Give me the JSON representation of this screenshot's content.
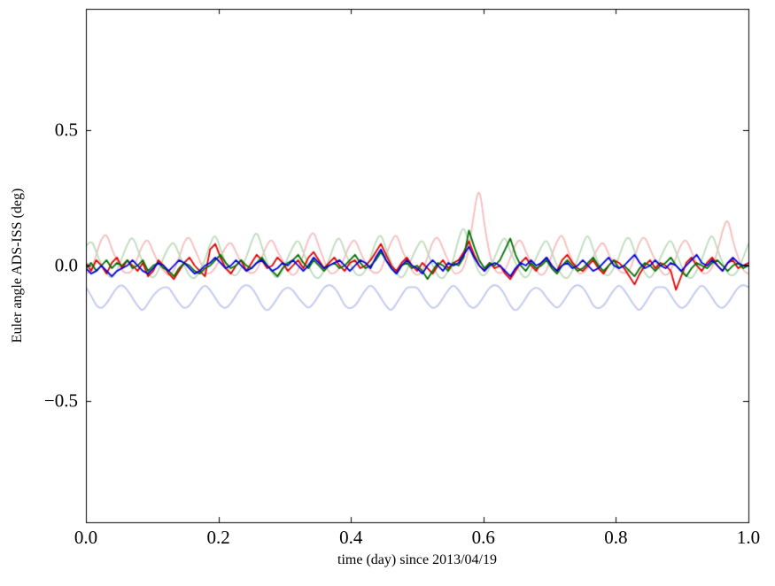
{
  "figure": {
    "background_color": "#ffffff",
    "axis_color": "#000000"
  },
  "chart_data": {
    "type": "line",
    "title": "",
    "xlabel": "time (day) since 2013/04/19",
    "ylabel": "Euler angle ADS-ISS (deg)",
    "xlim": [
      0,
      1
    ],
    "ylim": [
      -0.95,
      0.95
    ],
    "grid": false,
    "legend": "none",
    "xticks": {
      "values": [
        0.0,
        0.2,
        0.4,
        0.6,
        0.8,
        1.0
      ],
      "labels": [
        "0.0",
        "0.2",
        "0.4",
        "0.6",
        "0.8",
        "1.0"
      ]
    },
    "yticks": {
      "values": [
        -0.5,
        0.0,
        0.5
      ],
      "labels": [
        "−0.5",
        "0.0",
        "0.5"
      ]
    },
    "series": [
      {
        "name": "pale-red-oscillation",
        "color": "#f7bcbc",
        "width": 1.8,
        "smooth": true,
        "values": [
          -0.03,
          -0.02,
          0.04,
          0.1,
          0.12,
          0.06,
          0.02,
          -0.02,
          -0.03,
          -0.02,
          0.03,
          0.08,
          0.1,
          0.05,
          0.01,
          -0.02,
          -0.04,
          -0.02,
          0.03,
          0.09,
          0.11,
          0.06,
          0.02,
          -0.03,
          -0.03,
          -0.01,
          0.03,
          0.07,
          0.09,
          0.05,
          0.01,
          -0.02,
          -0.03,
          -0.02,
          0.03,
          0.08,
          0.1,
          0.05,
          0.02,
          -0.02,
          -0.04,
          -0.02,
          0.04,
          0.1,
          0.13,
          0.07,
          0.02,
          -0.03,
          -0.03,
          -0.01,
          0.03,
          0.08,
          0.1,
          0.05,
          0.01,
          -0.02,
          -0.03,
          -0.02,
          0.04,
          0.09,
          0.12,
          0.06,
          0.02,
          -0.02,
          -0.04,
          -0.02,
          0.03,
          0.09,
          0.11,
          0.06,
          0.02,
          -0.03,
          -0.03,
          -0.01,
          0.06,
          0.2,
          0.3,
          0.15,
          0.04,
          -0.02,
          -0.03,
          -0.02,
          0.03,
          0.08,
          0.1,
          0.05,
          0.01,
          -0.02,
          -0.04,
          -0.02,
          0.04,
          0.09,
          0.12,
          0.06,
          0.02,
          -0.03,
          -0.03,
          -0.01,
          0.03,
          0.07,
          0.09,
          0.04,
          0.01,
          -0.02,
          -0.03,
          -0.02,
          0.03,
          0.09,
          0.11,
          0.06,
          0.02,
          -0.02,
          -0.04,
          -0.02,
          0.03,
          0.08,
          0.1,
          0.05,
          0.01,
          -0.03,
          -0.03,
          -0.01,
          0.05,
          0.13,
          0.18,
          0.09,
          0.03,
          -0.02,
          -0.03
        ]
      },
      {
        "name": "pale-green-oscillation",
        "color": "#bcdcbc",
        "width": 1.8,
        "smooth": true,
        "values": [
          0.07,
          0.1,
          0.05,
          0.0,
          -0.03,
          -0.05,
          -0.02,
          0.03,
          0.08,
          0.11,
          0.06,
          0.01,
          -0.03,
          -0.05,
          -0.02,
          0.03,
          0.07,
          0.09,
          0.04,
          0.0,
          -0.04,
          -0.05,
          -0.02,
          0.02,
          0.08,
          0.12,
          0.06,
          0.01,
          -0.03,
          -0.04,
          -0.01,
          0.03,
          0.09,
          0.13,
          0.07,
          0.01,
          -0.03,
          -0.05,
          -0.02,
          0.03,
          0.07,
          0.1,
          0.05,
          0.0,
          -0.04,
          -0.05,
          -0.02,
          0.02,
          0.08,
          0.11,
          0.05,
          0.01,
          -0.03,
          -0.04,
          -0.02,
          0.03,
          0.09,
          0.12,
          0.06,
          0.01,
          -0.03,
          -0.05,
          -0.02,
          0.03,
          0.07,
          0.1,
          0.05,
          0.0,
          -0.04,
          -0.05,
          -0.02,
          0.02,
          0.1,
          0.15,
          0.08,
          0.02,
          -0.03,
          -0.04,
          -0.01,
          0.03,
          0.08,
          0.11,
          0.05,
          0.01,
          -0.03,
          -0.05,
          -0.02,
          0.03,
          0.07,
          0.1,
          0.05,
          0.0,
          -0.04,
          -0.05,
          -0.02,
          0.02,
          0.08,
          0.12,
          0.06,
          0.01,
          -0.03,
          -0.04,
          -0.01,
          0.03,
          0.09,
          0.11,
          0.05,
          0.01,
          -0.03,
          -0.05,
          -0.02,
          0.03,
          0.07,
          0.1,
          0.05,
          0.0,
          -0.04,
          -0.05,
          -0.02,
          0.02,
          0.08,
          0.12,
          0.06,
          0.01,
          -0.03,
          -0.04,
          -0.02,
          0.03,
          0.08
        ]
      },
      {
        "name": "pale-blue-oscillation",
        "color": "#bfc6f2",
        "width": 1.8,
        "smooth": true,
        "values": [
          -0.08,
          -0.11,
          -0.15,
          -0.16,
          -0.14,
          -0.11,
          -0.08,
          -0.07,
          -0.09,
          -0.12,
          -0.15,
          -0.17,
          -0.14,
          -0.11,
          -0.09,
          -0.08,
          -0.08,
          -0.11,
          -0.14,
          -0.16,
          -0.15,
          -0.12,
          -0.09,
          -0.07,
          -0.09,
          -0.12,
          -0.15,
          -0.16,
          -0.14,
          -0.11,
          -0.08,
          -0.07,
          -0.08,
          -0.11,
          -0.15,
          -0.17,
          -0.15,
          -0.12,
          -0.09,
          -0.08,
          -0.09,
          -0.12,
          -0.14,
          -0.16,
          -0.14,
          -0.11,
          -0.08,
          -0.07,
          -0.08,
          -0.11,
          -0.15,
          -0.16,
          -0.15,
          -0.12,
          -0.09,
          -0.07,
          -0.09,
          -0.12,
          -0.15,
          -0.17,
          -0.14,
          -0.11,
          -0.08,
          -0.08,
          -0.08,
          -0.11,
          -0.14,
          -0.16,
          -0.15,
          -0.12,
          -0.09,
          -0.07,
          -0.09,
          -0.12,
          -0.15,
          -0.16,
          -0.14,
          -0.11,
          -0.08,
          -0.07,
          -0.08,
          -0.11,
          -0.15,
          -0.17,
          -0.15,
          -0.12,
          -0.09,
          -0.08,
          -0.09,
          -0.12,
          -0.14,
          -0.16,
          -0.14,
          -0.11,
          -0.08,
          -0.07,
          -0.08,
          -0.11,
          -0.15,
          -0.16,
          -0.15,
          -0.12,
          -0.09,
          -0.07,
          -0.09,
          -0.12,
          -0.15,
          -0.17,
          -0.14,
          -0.11,
          -0.08,
          -0.08,
          -0.08,
          -0.11,
          -0.14,
          -0.16,
          -0.15,
          -0.12,
          -0.09,
          -0.07,
          -0.09,
          -0.12,
          -0.15,
          -0.16,
          -0.14,
          -0.11,
          -0.08,
          -0.07,
          -0.08
        ]
      },
      {
        "name": "red-euler-angle",
        "color": "#e00000",
        "width": 1.8,
        "smooth": false,
        "values": [
          0.01,
          -0.02,
          0.02,
          0.0,
          -0.03,
          0.01,
          0.03,
          -0.01,
          0.02,
          0.0,
          -0.02,
          0.01,
          -0.04,
          -0.02,
          0.02,
          0.0,
          -0.03,
          -0.05,
          -0.02,
          0.01,
          0.03,
          0.0,
          -0.02,
          -0.04,
          0.06,
          0.08,
          0.03,
          -0.01,
          -0.03,
          0.0,
          0.02,
          -0.02,
          0.01,
          0.04,
          0.02,
          -0.01,
          0.0,
          0.03,
          0.01,
          -0.02,
          0.0,
          0.02,
          -0.01,
          0.03,
          0.05,
          0.02,
          -0.01,
          0.01,
          0.03,
          0.0,
          -0.02,
          0.01,
          0.02,
          -0.01,
          0.0,
          0.02,
          0.05,
          0.08,
          0.04,
          0.0,
          -0.02,
          0.01,
          0.03,
          0.0,
          -0.02,
          0.01,
          -0.01,
          -0.03,
          0.0,
          0.02,
          -0.01,
          0.01,
          0.02,
          0.05,
          0.09,
          0.04,
          0.0,
          -0.02,
          0.01,
          -0.01,
          0.0,
          -0.03,
          -0.05,
          -0.02,
          0.01,
          0.03,
          0.0,
          -0.02,
          0.01,
          0.03,
          0.0,
          -0.02,
          0.02,
          0.04,
          0.01,
          -0.01,
          -0.02,
          0.0,
          0.02,
          -0.01,
          -0.03,
          0.0,
          0.02,
          0.01,
          -0.01,
          -0.04,
          -0.07,
          -0.03,
          0.0,
          0.02,
          -0.01,
          0.01,
          0.0,
          -0.02,
          -0.09,
          -0.04,
          0.01,
          0.03,
          0.0,
          -0.02,
          0.01,
          0.03,
          0.0,
          -0.02,
          0.01,
          0.02,
          -0.01,
          0.0,
          0.01
        ]
      },
      {
        "name": "green-euler-angle",
        "color": "#007000",
        "width": 1.8,
        "smooth": false,
        "values": [
          -0.01,
          0.01,
          -0.02,
          0.0,
          0.02,
          -0.01,
          0.01,
          0.0,
          0.02,
          -0.01,
          0.0,
          0.02,
          -0.02,
          0.0,
          0.01,
          -0.01,
          -0.02,
          -0.04,
          -0.01,
          0.01,
          0.0,
          -0.02,
          -0.03,
          -0.01,
          0.0,
          0.02,
          0.04,
          0.01,
          -0.01,
          0.0,
          0.02,
          0.0,
          -0.01,
          0.01,
          0.03,
          0.0,
          -0.02,
          -0.04,
          -0.01,
          0.01,
          0.02,
          0.04,
          0.01,
          -0.01,
          0.02,
          0.0,
          -0.02,
          0.0,
          0.01,
          -0.01,
          0.0,
          0.02,
          0.04,
          0.01,
          -0.01,
          0.0,
          0.02,
          0.05,
          0.02,
          -0.01,
          -0.03,
          0.0,
          0.01,
          -0.01,
          0.0,
          -0.02,
          -0.05,
          -0.02,
          0.01,
          0.0,
          -0.02,
          0.01,
          0.0,
          0.03,
          0.13,
          0.07,
          0.02,
          -0.01,
          0.01,
          0.0,
          0.02,
          0.06,
          0.1,
          0.04,
          0.0,
          -0.02,
          0.01,
          -0.01,
          0.0,
          0.02,
          -0.01,
          -0.03,
          0.0,
          0.02,
          0.0,
          -0.02,
          -0.01,
          0.01,
          0.03,
          0.0,
          -0.02,
          0.0,
          0.02,
          -0.01,
          0.0,
          -0.02,
          -0.04,
          -0.01,
          0.01,
          0.0,
          -0.02,
          0.0,
          0.01,
          0.03,
          0.0,
          -0.02,
          -0.04,
          -0.01,
          0.01,
          0.0,
          -0.01,
          0.01,
          0.02,
          0.0,
          -0.02,
          0.0,
          0.01,
          -0.01,
          0.0
        ]
      },
      {
        "name": "blue-euler-angle",
        "color": "#0000dd",
        "width": 1.8,
        "smooth": false,
        "values": [
          -0.01,
          -0.03,
          -0.02,
          0.0,
          -0.02,
          -0.04,
          -0.02,
          -0.01,
          0.0,
          0.02,
          0.0,
          -0.02,
          -0.03,
          -0.01,
          0.01,
          0.0,
          -0.02,
          0.0,
          0.02,
          0.01,
          -0.01,
          -0.03,
          -0.02,
          0.0,
          0.01,
          0.03,
          0.01,
          -0.01,
          0.0,
          0.02,
          0.0,
          -0.02,
          -0.01,
          0.01,
          0.02,
          0.0,
          -0.02,
          -0.01,
          0.01,
          0.0,
          0.02,
          0.0,
          -0.02,
          0.0,
          0.03,
          0.01,
          -0.01,
          0.0,
          0.01,
          0.02,
          0.0,
          -0.02,
          0.0,
          0.02,
          0.01,
          -0.01,
          0.03,
          0.06,
          0.02,
          -0.01,
          -0.03,
          0.0,
          0.02,
          0.0,
          -0.01,
          -0.03,
          0.0,
          0.02,
          0.0,
          -0.02,
          0.01,
          0.0,
          0.01,
          0.04,
          0.07,
          0.03,
          0.0,
          -0.02,
          0.0,
          0.01,
          0.0,
          -0.02,
          -0.04,
          -0.01,
          0.01,
          0.0,
          0.02,
          0.0,
          0.01,
          0.03,
          0.0,
          -0.02,
          0.0,
          0.01,
          -0.01,
          0.0,
          0.02,
          0.0,
          -0.02,
          -0.01,
          0.01,
          0.03,
          0.0,
          -0.01,
          0.0,
          0.02,
          0.04,
          0.01,
          -0.01,
          0.0,
          0.02,
          0.0,
          -0.01,
          0.01,
          0.0,
          -0.02,
          0.0,
          0.02,
          0.04,
          0.01,
          0.0,
          0.02,
          0.0,
          -0.02,
          0.01,
          0.03,
          0.01,
          0.0,
          0.0
        ]
      }
    ]
  }
}
